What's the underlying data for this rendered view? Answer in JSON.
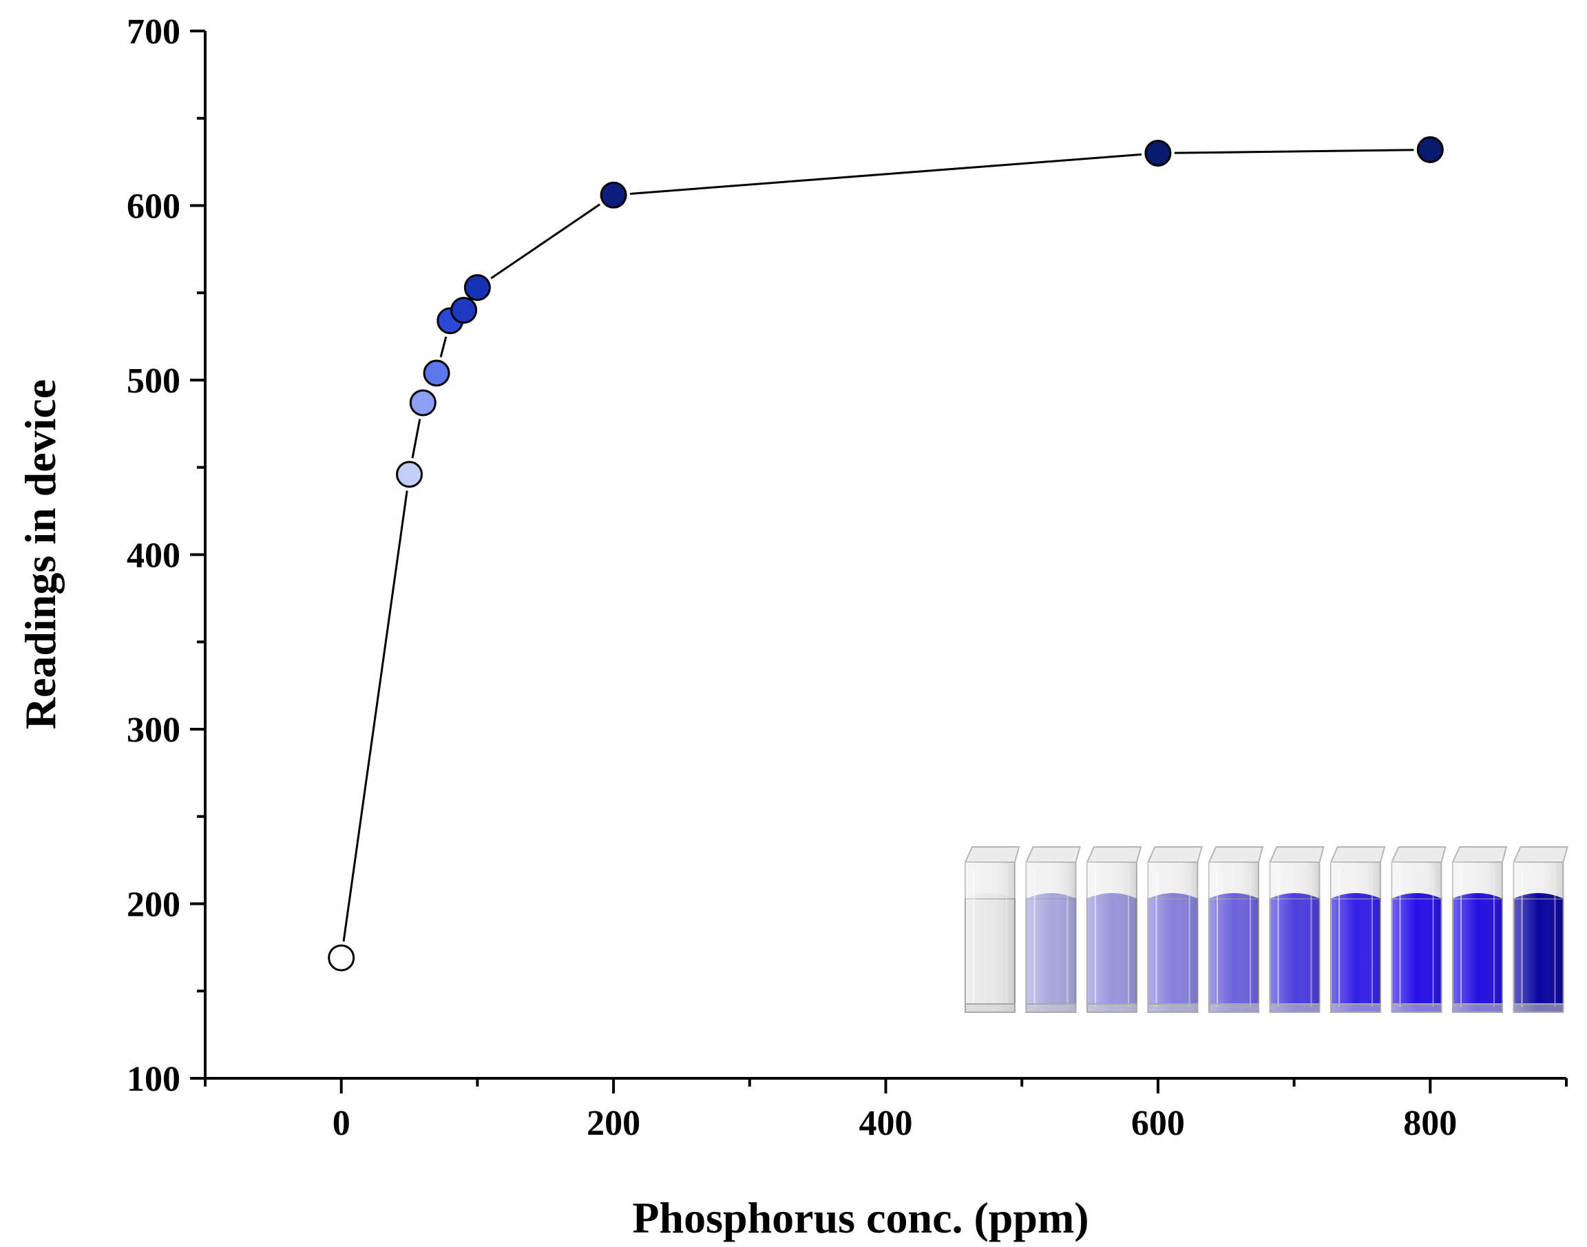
{
  "chart_data": {
    "type": "line",
    "title": "",
    "xlabel": "Phosphorus conc. (ppm)",
    "ylabel": "Readings in device",
    "xlim": [
      -100,
      900
    ],
    "ylim": [
      100,
      700
    ],
    "xticks": [
      0,
      200,
      400,
      600,
      800
    ],
    "xtick_labels": [
      "0",
      "200",
      "400",
      "600",
      "800"
    ],
    "xminor": [
      -100,
      100,
      300,
      500,
      700,
      900
    ],
    "yticks": [
      100,
      200,
      300,
      400,
      500,
      600,
      700
    ],
    "ytick_labels": [
      "100",
      "200",
      "300",
      "400",
      "500",
      "600",
      "700"
    ],
    "yminor": [
      150,
      250,
      350,
      450,
      550,
      650
    ],
    "grid": false,
    "series": [
      {
        "name": "Readings",
        "line_color": "#000000",
        "x": [
          0,
          50,
          60,
          70,
          80,
          90,
          100,
          200,
          600,
          800
        ],
        "y": [
          169,
          446,
          487,
          504,
          534,
          540,
          553,
          606,
          630,
          632
        ],
        "marker_colors": [
          "#ffffff",
          "#c3cdf7",
          "#8d9ff2",
          "#5e76ec",
          "#2b48d8",
          "#1e38c0",
          "#1532b4",
          "#0c1f7c",
          "#0a1a6e",
          "#0a1a6e"
        ]
      }
    ],
    "inset": {
      "description": "cuvettes",
      "colors": [
        "#e8e8e8",
        "#a9a6de",
        "#9995dc",
        "#8680dc",
        "#6d63dc",
        "#4c3fdc",
        "#3420e6",
        "#2710e8",
        "#2510e0",
        "#0c06a0"
      ]
    }
  }
}
